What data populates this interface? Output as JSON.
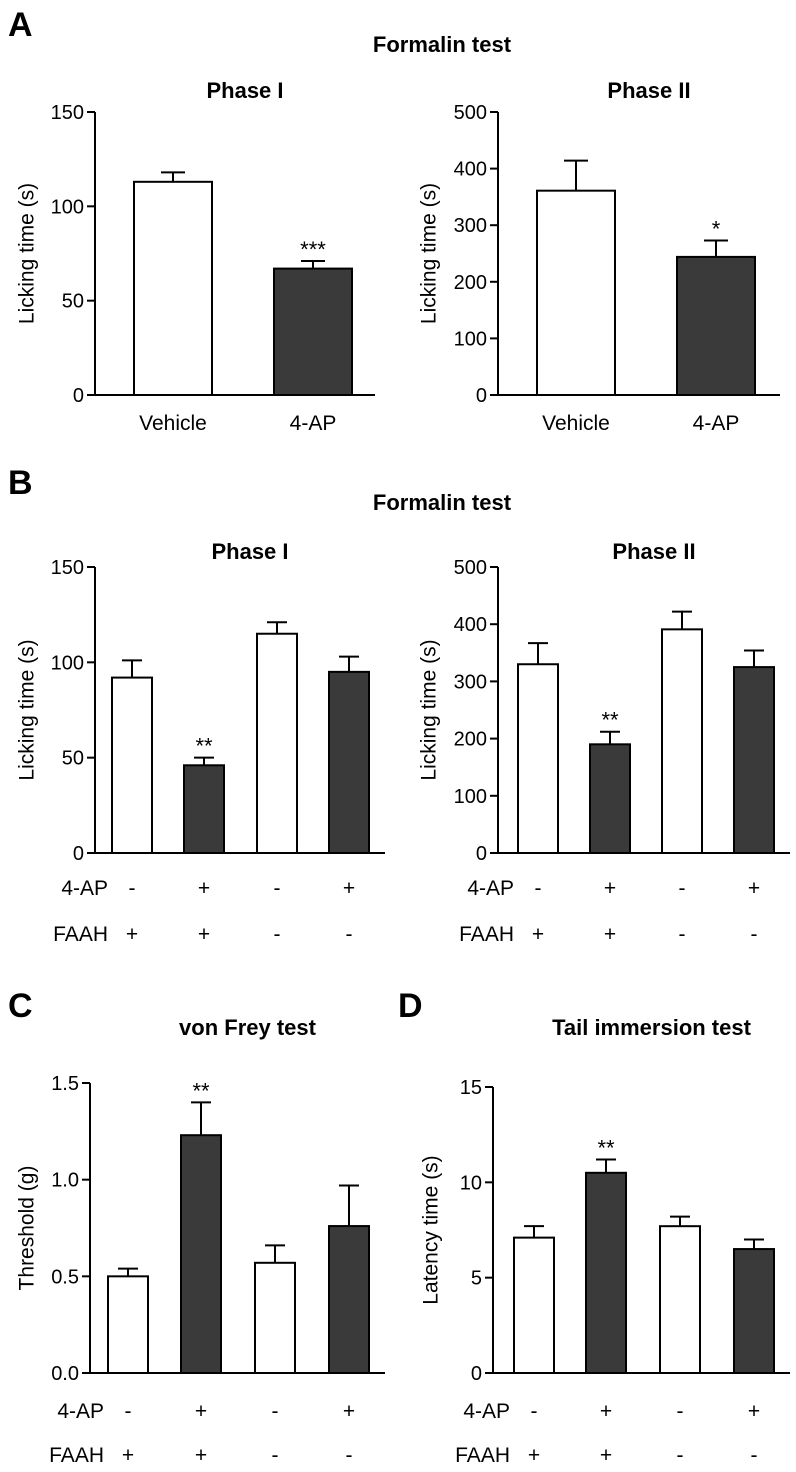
{
  "panel_letters": [
    "A",
    "B",
    "C",
    "D"
  ],
  "group_titles": {
    "A": "Formalin test",
    "B": "Formalin test"
  },
  "condition_labels": {
    "row1": "4-AP",
    "row2": "FAAH"
  },
  "condition_signs": {
    "row1": [
      "-",
      "+",
      "-",
      "+"
    ],
    "row2": [
      "+",
      "+",
      "-",
      "-"
    ]
  },
  "colors": {
    "control": "#ffffff",
    "treated": "#3a3a3a",
    "ink": "#000000"
  },
  "chart_data": [
    {
      "id": "A-phase1",
      "panel": "A",
      "type": "bar",
      "title": "Phase I",
      "ylabel": "Licking time (s)",
      "ylim": [
        0,
        150
      ],
      "yticks": [
        0,
        50,
        100,
        150
      ],
      "categories": [
        "Vehicle",
        "4-AP"
      ],
      "values": [
        113,
        67
      ],
      "errors": [
        5,
        4
      ],
      "fills": [
        "control",
        "treated"
      ],
      "significance": [
        "",
        "***"
      ]
    },
    {
      "id": "A-phase2",
      "panel": "A",
      "type": "bar",
      "title": "Phase II",
      "ylabel": "Licking time (s)",
      "ylim": [
        0,
        500
      ],
      "yticks": [
        0,
        100,
        200,
        300,
        400,
        500
      ],
      "categories": [
        "Vehicle",
        "4-AP"
      ],
      "values": [
        361,
        244
      ],
      "errors": [
        53,
        29
      ],
      "fills": [
        "control",
        "treated"
      ],
      "significance": [
        "",
        "*"
      ]
    },
    {
      "id": "B-phase1",
      "panel": "B",
      "type": "bar",
      "title": "Phase I",
      "ylabel": "Licking time (s)",
      "ylim": [
        0,
        150
      ],
      "yticks": [
        0,
        50,
        100,
        150
      ],
      "categories": [
        "",
        "",
        "",
        ""
      ],
      "values": [
        92,
        46,
        115,
        95
      ],
      "errors": [
        9,
        4,
        6,
        8
      ],
      "fills": [
        "control",
        "treated",
        "control",
        "treated"
      ],
      "significance": [
        "",
        "**",
        "",
        ""
      ]
    },
    {
      "id": "B-phase2",
      "panel": "B",
      "type": "bar",
      "title": "Phase II",
      "ylabel": "Licking time (s)",
      "ylim": [
        0,
        500
      ],
      "yticks": [
        0,
        100,
        200,
        300,
        400,
        500
      ],
      "categories": [
        "",
        "",
        "",
        ""
      ],
      "values": [
        330,
        190,
        391,
        325
      ],
      "errors": [
        37,
        22,
        31,
        29
      ],
      "fills": [
        "control",
        "treated",
        "control",
        "treated"
      ],
      "significance": [
        "",
        "**",
        "",
        ""
      ]
    },
    {
      "id": "C-vonfrey",
      "panel": "C",
      "type": "bar",
      "title": "von Frey test",
      "ylabel": "Threshold (g)",
      "ylim": [
        0,
        1.5
      ],
      "yticks": [
        "0.0",
        "0.5",
        "1.0",
        "1.5"
      ],
      "categories": [
        "",
        "",
        "",
        ""
      ],
      "values": [
        0.5,
        1.23,
        0.57,
        0.76
      ],
      "errors": [
        0.04,
        0.17,
        0.09,
        0.21
      ],
      "fills": [
        "control",
        "treated",
        "control",
        "treated"
      ],
      "significance": [
        "",
        "**",
        "",
        ""
      ]
    },
    {
      "id": "D-tail",
      "panel": "D",
      "type": "bar",
      "title": "Tail immersion test",
      "ylabel": "Latency time (s)",
      "ylim": [
        0,
        15
      ],
      "yticks": [
        0,
        5,
        10,
        15
      ],
      "categories": [
        "",
        "",
        "",
        ""
      ],
      "values": [
        7.1,
        10.5,
        7.7,
        6.5
      ],
      "errors": [
        0.6,
        0.7,
        0.5,
        0.5
      ],
      "fills": [
        "control",
        "treated",
        "control",
        "treated"
      ],
      "significance": [
        "",
        "**",
        "",
        ""
      ]
    }
  ]
}
